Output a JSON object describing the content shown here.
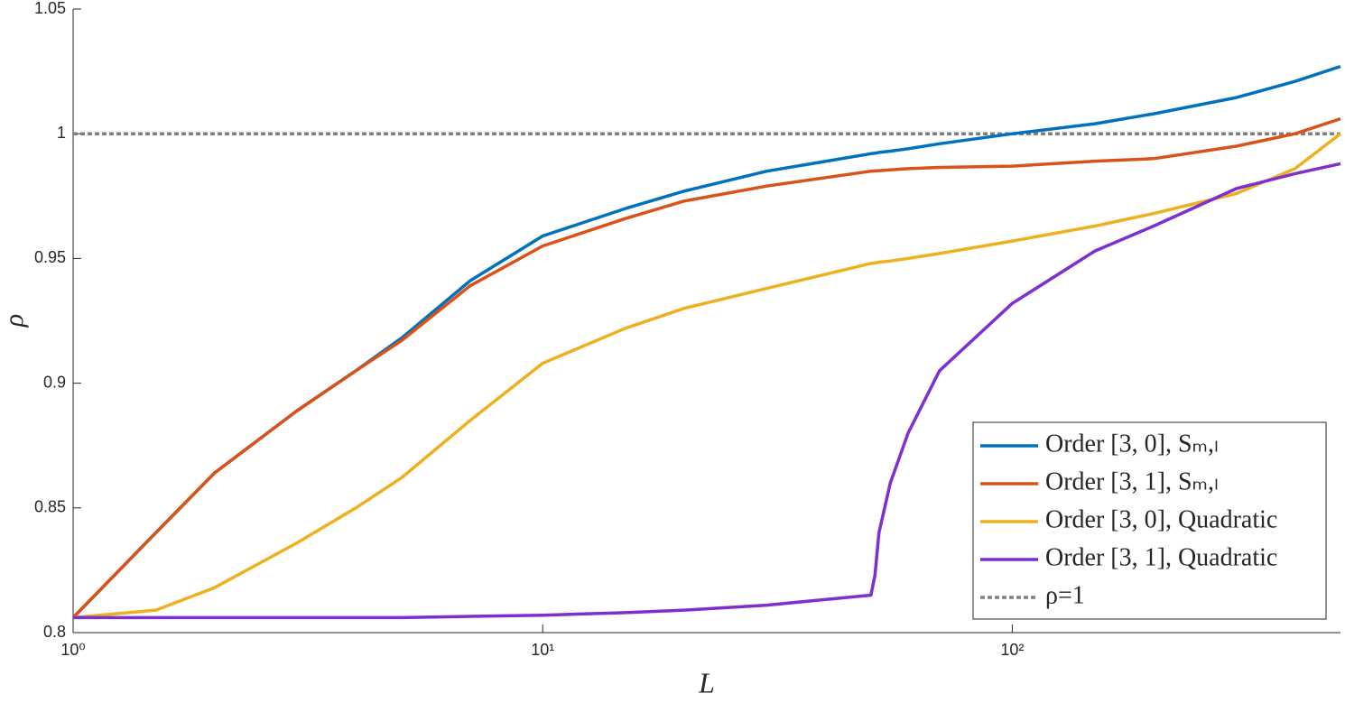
{
  "chart_data": {
    "type": "line",
    "x_label": "L",
    "y_label": "ρ",
    "x": [
      1,
      1.5,
      2,
      3,
      4,
      5,
      7,
      10,
      15,
      20,
      30,
      50,
      51,
      52,
      55,
      60,
      70,
      100,
      150,
      200,
      300,
      400,
      500
    ],
    "series": [
      {
        "name": "Order [3, 0], Sₘ,ₗ",
        "color": "#0072bd",
        "values": [
          0.806,
          0.84,
          0.864,
          0.889,
          0.905,
          0.918,
          0.941,
          0.959,
          0.97,
          0.977,
          0.985,
          0.992,
          0.9922,
          0.9925,
          0.993,
          0.994,
          0.996,
          1.0,
          1.004,
          1.008,
          1.0145,
          1.021,
          1.027
        ]
      },
      {
        "name": "Order [3, 1], Sₘ,ₗ",
        "color": "#d95319",
        "values": [
          0.806,
          0.84,
          0.864,
          0.889,
          0.905,
          0.917,
          0.939,
          0.955,
          0.966,
          0.973,
          0.979,
          0.985,
          0.9851,
          0.9852,
          0.9855,
          0.986,
          0.9865,
          0.987,
          0.989,
          0.99,
          0.995,
          1.0,
          1.006
        ]
      },
      {
        "name": "Order [3, 0], Quadratic",
        "color": "#edb120",
        "values": [
          0.806,
          0.809,
          0.818,
          0.836,
          0.85,
          0.862,
          0.885,
          0.908,
          0.922,
          0.93,
          0.938,
          0.948,
          0.9482,
          0.9485,
          0.949,
          0.95,
          0.952,
          0.957,
          0.963,
          0.968,
          0.976,
          0.986,
          1.0
        ]
      },
      {
        "name": "Order [3, 1], Quadratic",
        "color": "#7e2fd0",
        "values": [
          0.806,
          0.806,
          0.806,
          0.806,
          0.806,
          0.806,
          0.8065,
          0.807,
          0.808,
          0.809,
          0.811,
          0.815,
          0.823,
          0.84,
          0.86,
          0.88,
          0.905,
          0.932,
          0.953,
          0.963,
          0.978,
          0.984,
          0.988
        ]
      }
    ],
    "reference_line": {
      "name": "ρ=1",
      "y": 1,
      "color": "#808080"
    },
    "xscale": "log",
    "xlim": [
      1,
      500
    ],
    "ylim": [
      0.8,
      1.05
    ],
    "xticks": [
      {
        "value": 1,
        "label": "10⁰"
      },
      {
        "value": 10,
        "label": "10¹"
      },
      {
        "value": 100,
        "label": "10²"
      }
    ],
    "yticks": [
      0.8,
      0.85,
      0.9,
      0.95,
      1,
      1.05
    ]
  }
}
